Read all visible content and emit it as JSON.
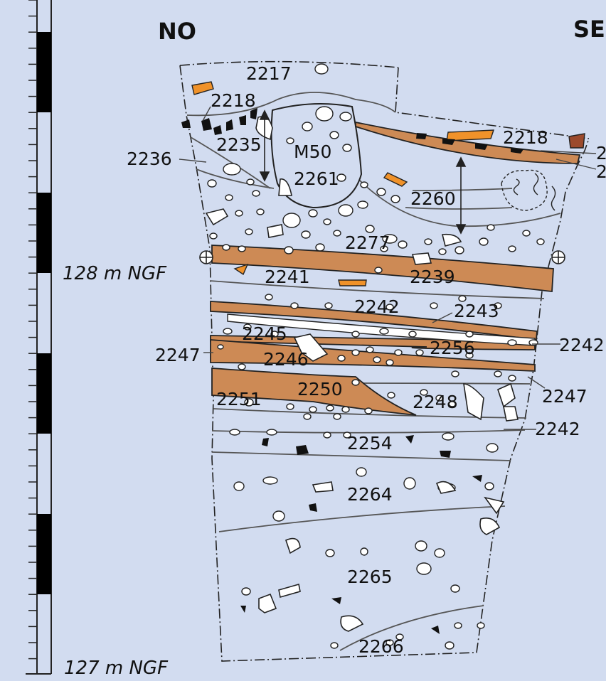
{
  "orientation": {
    "left": "NO",
    "right": "SE"
  },
  "scale": {
    "upper_label": "128 m NGF",
    "lower_label": "127 m NGF"
  },
  "colors": {
    "background": "#d2dcf0",
    "clay_layer": "#cd8a55",
    "tile_fragment": "#f0922a",
    "brick_fragment": "#9c4a2c",
    "line": "#555555"
  },
  "layers": {
    "l2217": "2217",
    "l2218a": "2218",
    "l2218b": "2218",
    "l2235": "2235",
    "l2236": "2236",
    "m50": "M50",
    "l2261": "2261",
    "l2260": "2260",
    "l2277": "2277",
    "l2241": "2241",
    "l2239": "2239",
    "l2242a": "2242",
    "l2243": "2243",
    "l2245": "2245",
    "l2247a": "2247",
    "l2246": "2246",
    "l2256": "2256",
    "l2242b": "2242",
    "l2250": "2250",
    "l2251": "2251",
    "l2248": "2248",
    "l2247b": "2247",
    "l2242c": "2242",
    "l2254": "2254",
    "l2264": "2264",
    "l2265": "2265",
    "l2266": "2266",
    "cut_right_top": "2",
    "cut_right_bottom": "2"
  }
}
